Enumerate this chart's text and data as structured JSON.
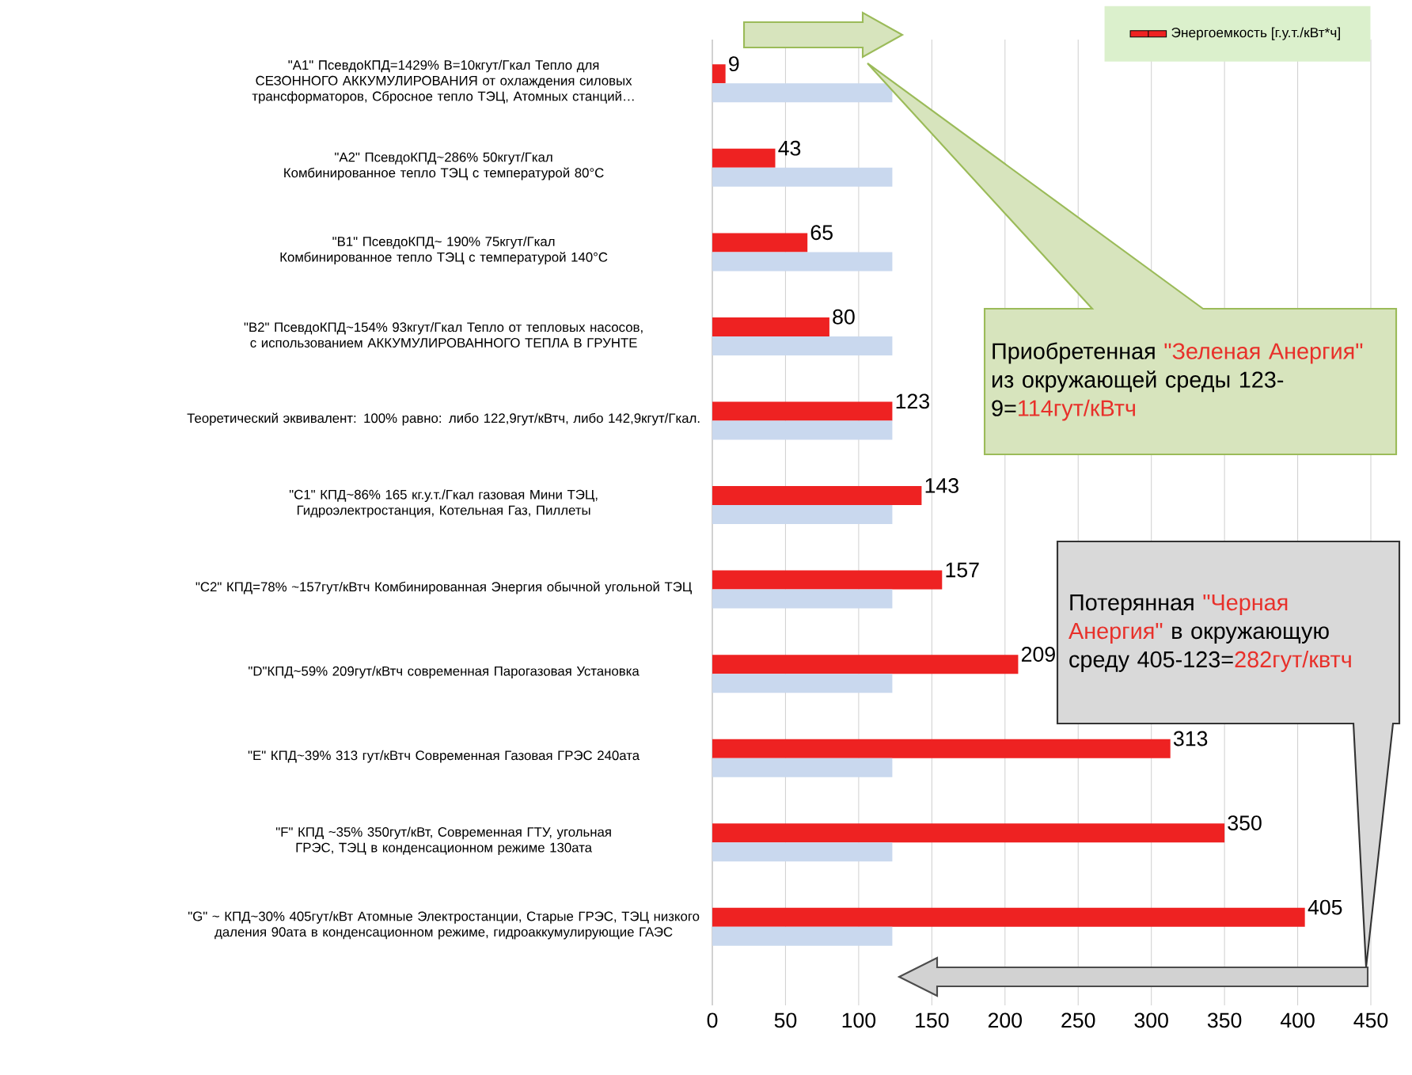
{
  "chart_data": {
    "type": "bar",
    "orientation": "horizontal",
    "categories": [
      "\"A1\" ПсевдоКПД=1429% В=10кгут/Гкал Тепло для СЕЗОННОГО АККУМУЛИРОВАНИЯ от охлаждения силовых трансформаторов, Сбросное тепло ТЭЦ, Атомных станций…",
      "\"A2\" ПсевдоКПД~286% 50кгут/Гкал Комбинированное тепло ТЭЦ с температурой 80°C",
      "\"B1\" ПсевдоКПД~ 190% 75кгут/Гкал Комбинированное тепло ТЭЦ с температурой 140°C",
      "\"B2\" ПсевдоКПД~154% 93кгут/Гкал Тепло от тепловых насосов, с использованием АККУМУЛИРОВАННОГО ТЕПЛА В ГРУНТЕ",
      "Теоретический эквивалент: 100% равно: либо 122,9гут/кВтч, либо 142,9кгут/Гкал.",
      "\"C1\" КПД~86% 165 кг.у.т./Гкал газовая Мини ТЭЦ, Гидроэлектростанция, Котельная Газ, Пиллеты",
      "\"C2\" КПД=78% ~157гут/кВтч Комбинированная Энергия обычной угольной ТЭЦ",
      "\"D\"КПД~59% 209гут/кВтч современная Парогазовая Установка",
      "\"E\" КПД~39% 313 гут/кВтч Современная Газовая ГРЭС 240ата",
      "\"F\" КПД ~35% 350гут/кВт, Современная ГТУ, угольная ГРЭС, ТЭЦ в конденсационном режиме 130ата",
      "\"G\" ~ КПД~30% 405гут/кВт Атомные Электростанции, Старые ГРЭС, ТЭЦ низкого даления 90ата в конденсационном режиме, гидроаккумулирующие ГАЭС"
    ],
    "series": [
      {
        "name": "Энергоемкость [г.у.т./кВт*ч]",
        "color": "#ee2222",
        "values": [
          9,
          43,
          65,
          80,
          123,
          143,
          157,
          209,
          313,
          350,
          405
        ],
        "value_labels": [
          "9",
          "43",
          "65",
          "80",
          "123",
          "143",
          "157",
          "209",
          "313",
          "350",
          "405"
        ]
      },
      {
        "color": "#c9d8ee",
        "values": [
          123,
          123,
          123,
          123,
          123,
          123,
          123,
          123,
          123,
          123,
          123
        ]
      }
    ],
    "xlim": [
      0,
      450
    ],
    "xticks": [
      0,
      50,
      100,
      150,
      200,
      250,
      300,
      350,
      400,
      450
    ],
    "grid": "x",
    "legend": "top right",
    "annotations": [
      "Приобретенная",
      "\"Зеленая Анергия\"",
      "из окружающей среды 123-9=",
      "114гут/кВтч",
      "Потерянная",
      "\"Черная Анергия\"",
      "в окружающую среду 405-123=",
      "282гут/квтч"
    ]
  }
}
